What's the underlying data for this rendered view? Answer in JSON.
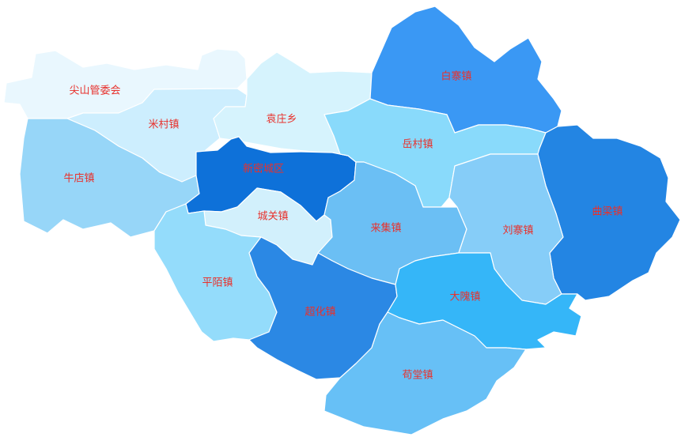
{
  "label_color": "#e8312c",
  "regions": [
    {
      "id": "jianshan",
      "name": "尖山管委会",
      "color": "#e9f7fe"
    },
    {
      "id": "micun",
      "name": "米村镇",
      "color": "#cdeefe"
    },
    {
      "id": "yuanzhuang",
      "name": "袁庄乡",
      "color": "#d6f3fd"
    },
    {
      "id": "baizhai",
      "name": "白寨镇",
      "color": "#3a98f4"
    },
    {
      "id": "niudian",
      "name": "牛店镇",
      "color": "#97d6f8"
    },
    {
      "id": "xinmi",
      "name": "新密城区",
      "color": "#0e71d9"
    },
    {
      "id": "yuecun",
      "name": "岳村镇",
      "color": "#89dafb"
    },
    {
      "id": "quliang",
      "name": "曲梁镇",
      "color": "#2385e3"
    },
    {
      "id": "chengguan",
      "name": "城关镇",
      "color": "#d2f0fc"
    },
    {
      "id": "laiji",
      "name": "来集镇",
      "color": "#6bbff4"
    },
    {
      "id": "liuzhai",
      "name": "刘寨镇",
      "color": "#86cdf8"
    },
    {
      "id": "pingmo",
      "name": "平陌镇",
      "color": "#94dcfb"
    },
    {
      "id": "chaohua",
      "name": "超化镇",
      "color": "#2b88e4"
    },
    {
      "id": "dawei",
      "name": "大隗镇",
      "color": "#35b6f8"
    },
    {
      "id": "goutang",
      "name": "苟堂镇",
      "color": "#67c0f6"
    }
  ]
}
